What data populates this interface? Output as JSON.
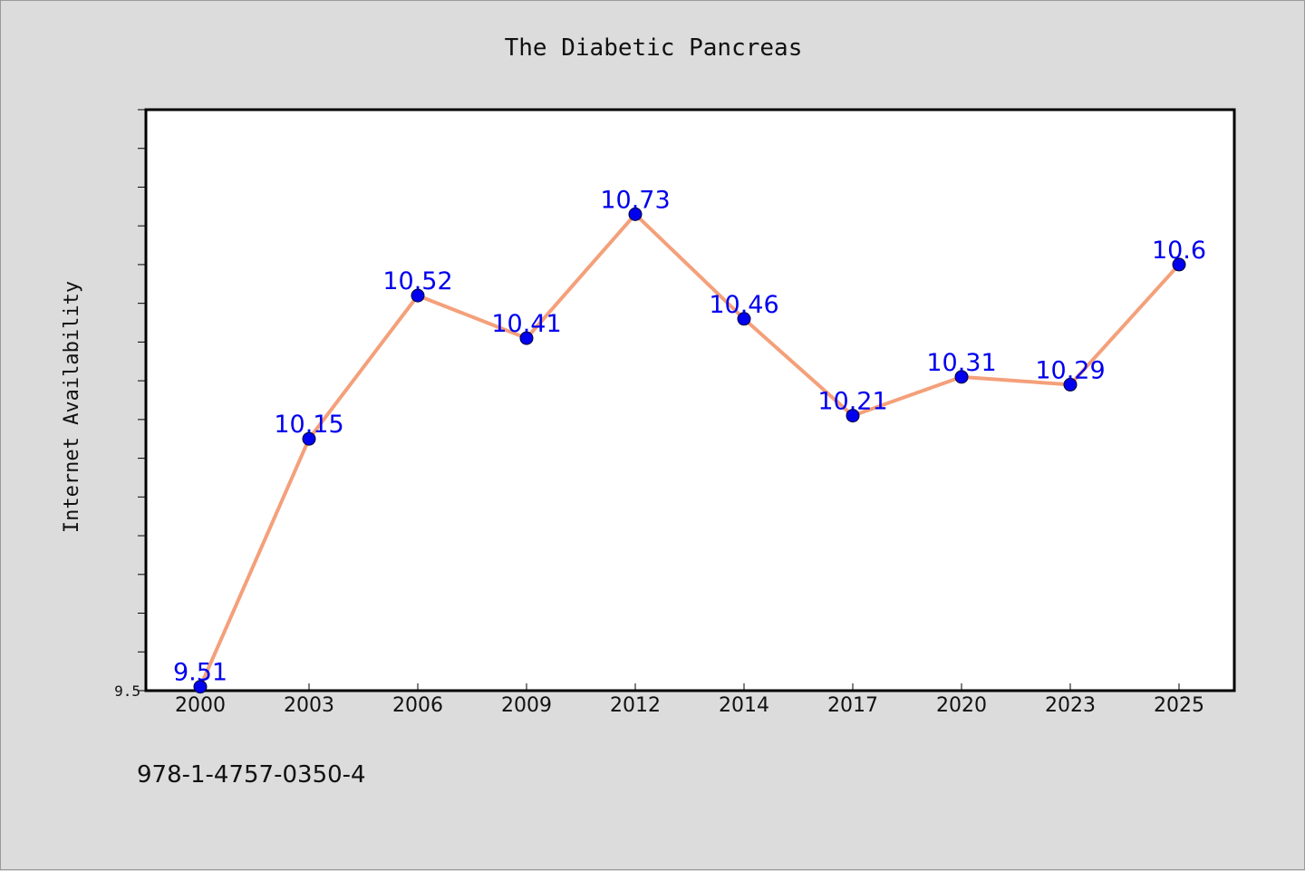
{
  "chart_data": {
    "type": "line",
    "title": "The Diabetic Pancreas",
    "xlabel": "",
    "ylabel": "Internet Availability",
    "categories": [
      "2000",
      "2003",
      "2006",
      "2009",
      "2012",
      "2014",
      "2017",
      "2020",
      "2023",
      "2025"
    ],
    "series": [
      {
        "values": [
          9.51,
          10.15,
          10.52,
          10.41,
          10.73,
          10.46,
          10.21,
          10.31,
          10.29,
          10.6
        ],
        "labels": [
          "9.51",
          "10.15",
          "10.52",
          "10.41",
          "10.73",
          "10.46",
          "10.21",
          "10.31",
          "10.29",
          "10.6"
        ],
        "line_color": "#f4a07a",
        "marker_color": "#0000ee",
        "label_color": "#0000ee"
      }
    ],
    "ylim": [
      9.5,
      11.0
    ],
    "yticks": [
      {
        "value": 9.5,
        "label": "9.5"
      }
    ],
    "grid": false,
    "legend": false
  },
  "footer": {
    "isbn": "978-1-4757-0350-4"
  },
  "colors": {
    "background": "#dcdcdc",
    "plot_background": "#ffffff",
    "axis": "#000000"
  }
}
